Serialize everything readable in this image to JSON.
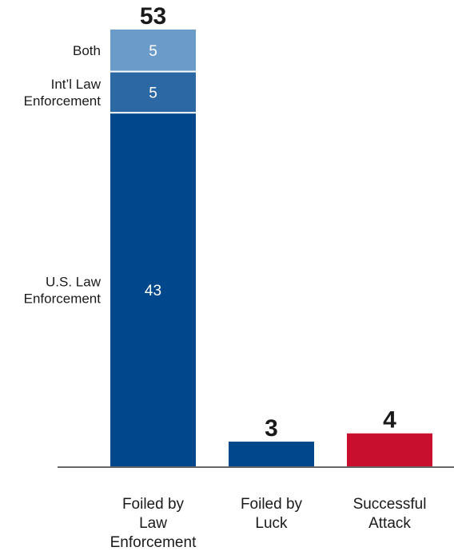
{
  "chart_data": {
    "type": "bar",
    "stacked": true,
    "categories": [
      "Foiled by Law Enforcement",
      "Foiled by Luck",
      "Successful Attack"
    ],
    "category_labels": [
      [
        "Foiled by",
        "Law",
        "Enforcement"
      ],
      [
        "Foiled by",
        "Luck"
      ],
      [
        "Successful",
        "Attack"
      ]
    ],
    "totals": [
      53,
      3,
      4
    ],
    "bars": [
      {
        "category": "Foiled by Law Enforcement",
        "total": 53,
        "segments": [
          {
            "name_lines": [
              "U.S. Law",
              "Enforcement"
            ],
            "value": 43,
            "color": "#00478b"
          },
          {
            "name_lines": [
              "Int’l Law",
              "Enforcement"
            ],
            "value": 5,
            "color": "#2c68a3"
          },
          {
            "name_lines": [
              "Both"
            ],
            "value": 5,
            "color": "#6a9bc9"
          }
        ]
      },
      {
        "category": "Foiled by Luck",
        "total": 3,
        "segments": [
          {
            "value": 3,
            "color": "#00478b"
          }
        ]
      },
      {
        "category": "Successful Attack",
        "total": 4,
        "segments": [
          {
            "value": 4,
            "color": "#c8102e"
          }
        ]
      }
    ],
    "ylim": [
      0,
      53
    ],
    "grid": false,
    "title": "",
    "xlabel": "",
    "ylabel": ""
  }
}
